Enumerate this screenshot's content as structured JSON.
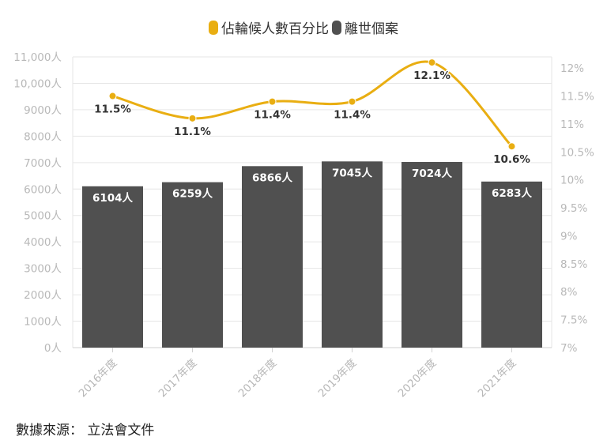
{
  "legend": {
    "line_label": "佔輪候人數百分比",
    "bar_label": "離世個案"
  },
  "source": "數據來源： 立法會文件",
  "colors": {
    "bar": "#505050",
    "line": "#E9AE12",
    "axis_text": "#B8B8B8",
    "grid": "#E6E6E6"
  },
  "chart_data": {
    "type": "bar",
    "categories": [
      "2016年度",
      "2017年度",
      "2018年度",
      "2019年度",
      "2020年度",
      "2021年度"
    ],
    "series": [
      {
        "name": "離世個案",
        "type": "bar",
        "axis": "left",
        "values": [
          6104,
          6259,
          6866,
          7045,
          7024,
          6283
        ],
        "labels": [
          "6104人",
          "6259人",
          "6866人",
          "7045人",
          "7024人",
          "6283人"
        ]
      },
      {
        "name": "佔輪候人數百分比",
        "type": "line",
        "axis": "right",
        "values": [
          11.5,
          11.1,
          11.4,
          11.4,
          12.1,
          10.6
        ],
        "labels": [
          "11.5%",
          "11.1%",
          "11.4%",
          "11.4%",
          "12.1%",
          "10.6%"
        ]
      }
    ],
    "y_left": {
      "range": [
        0,
        11000
      ],
      "ticks": [
        "0人",
        "1000人",
        "2000人",
        "3000人",
        "4000人",
        "5000人",
        "6000人",
        "7000人",
        "8000人",
        "9000人",
        "10,000人",
        "11,000人"
      ]
    },
    "y_right": {
      "range": [
        7,
        12.2
      ],
      "ticks": [
        "7%",
        "7.5%",
        "8%",
        "8.5%",
        "9%",
        "9.5%",
        "10%",
        "10.5%",
        "11%",
        "11.5%",
        "12%"
      ]
    }
  }
}
